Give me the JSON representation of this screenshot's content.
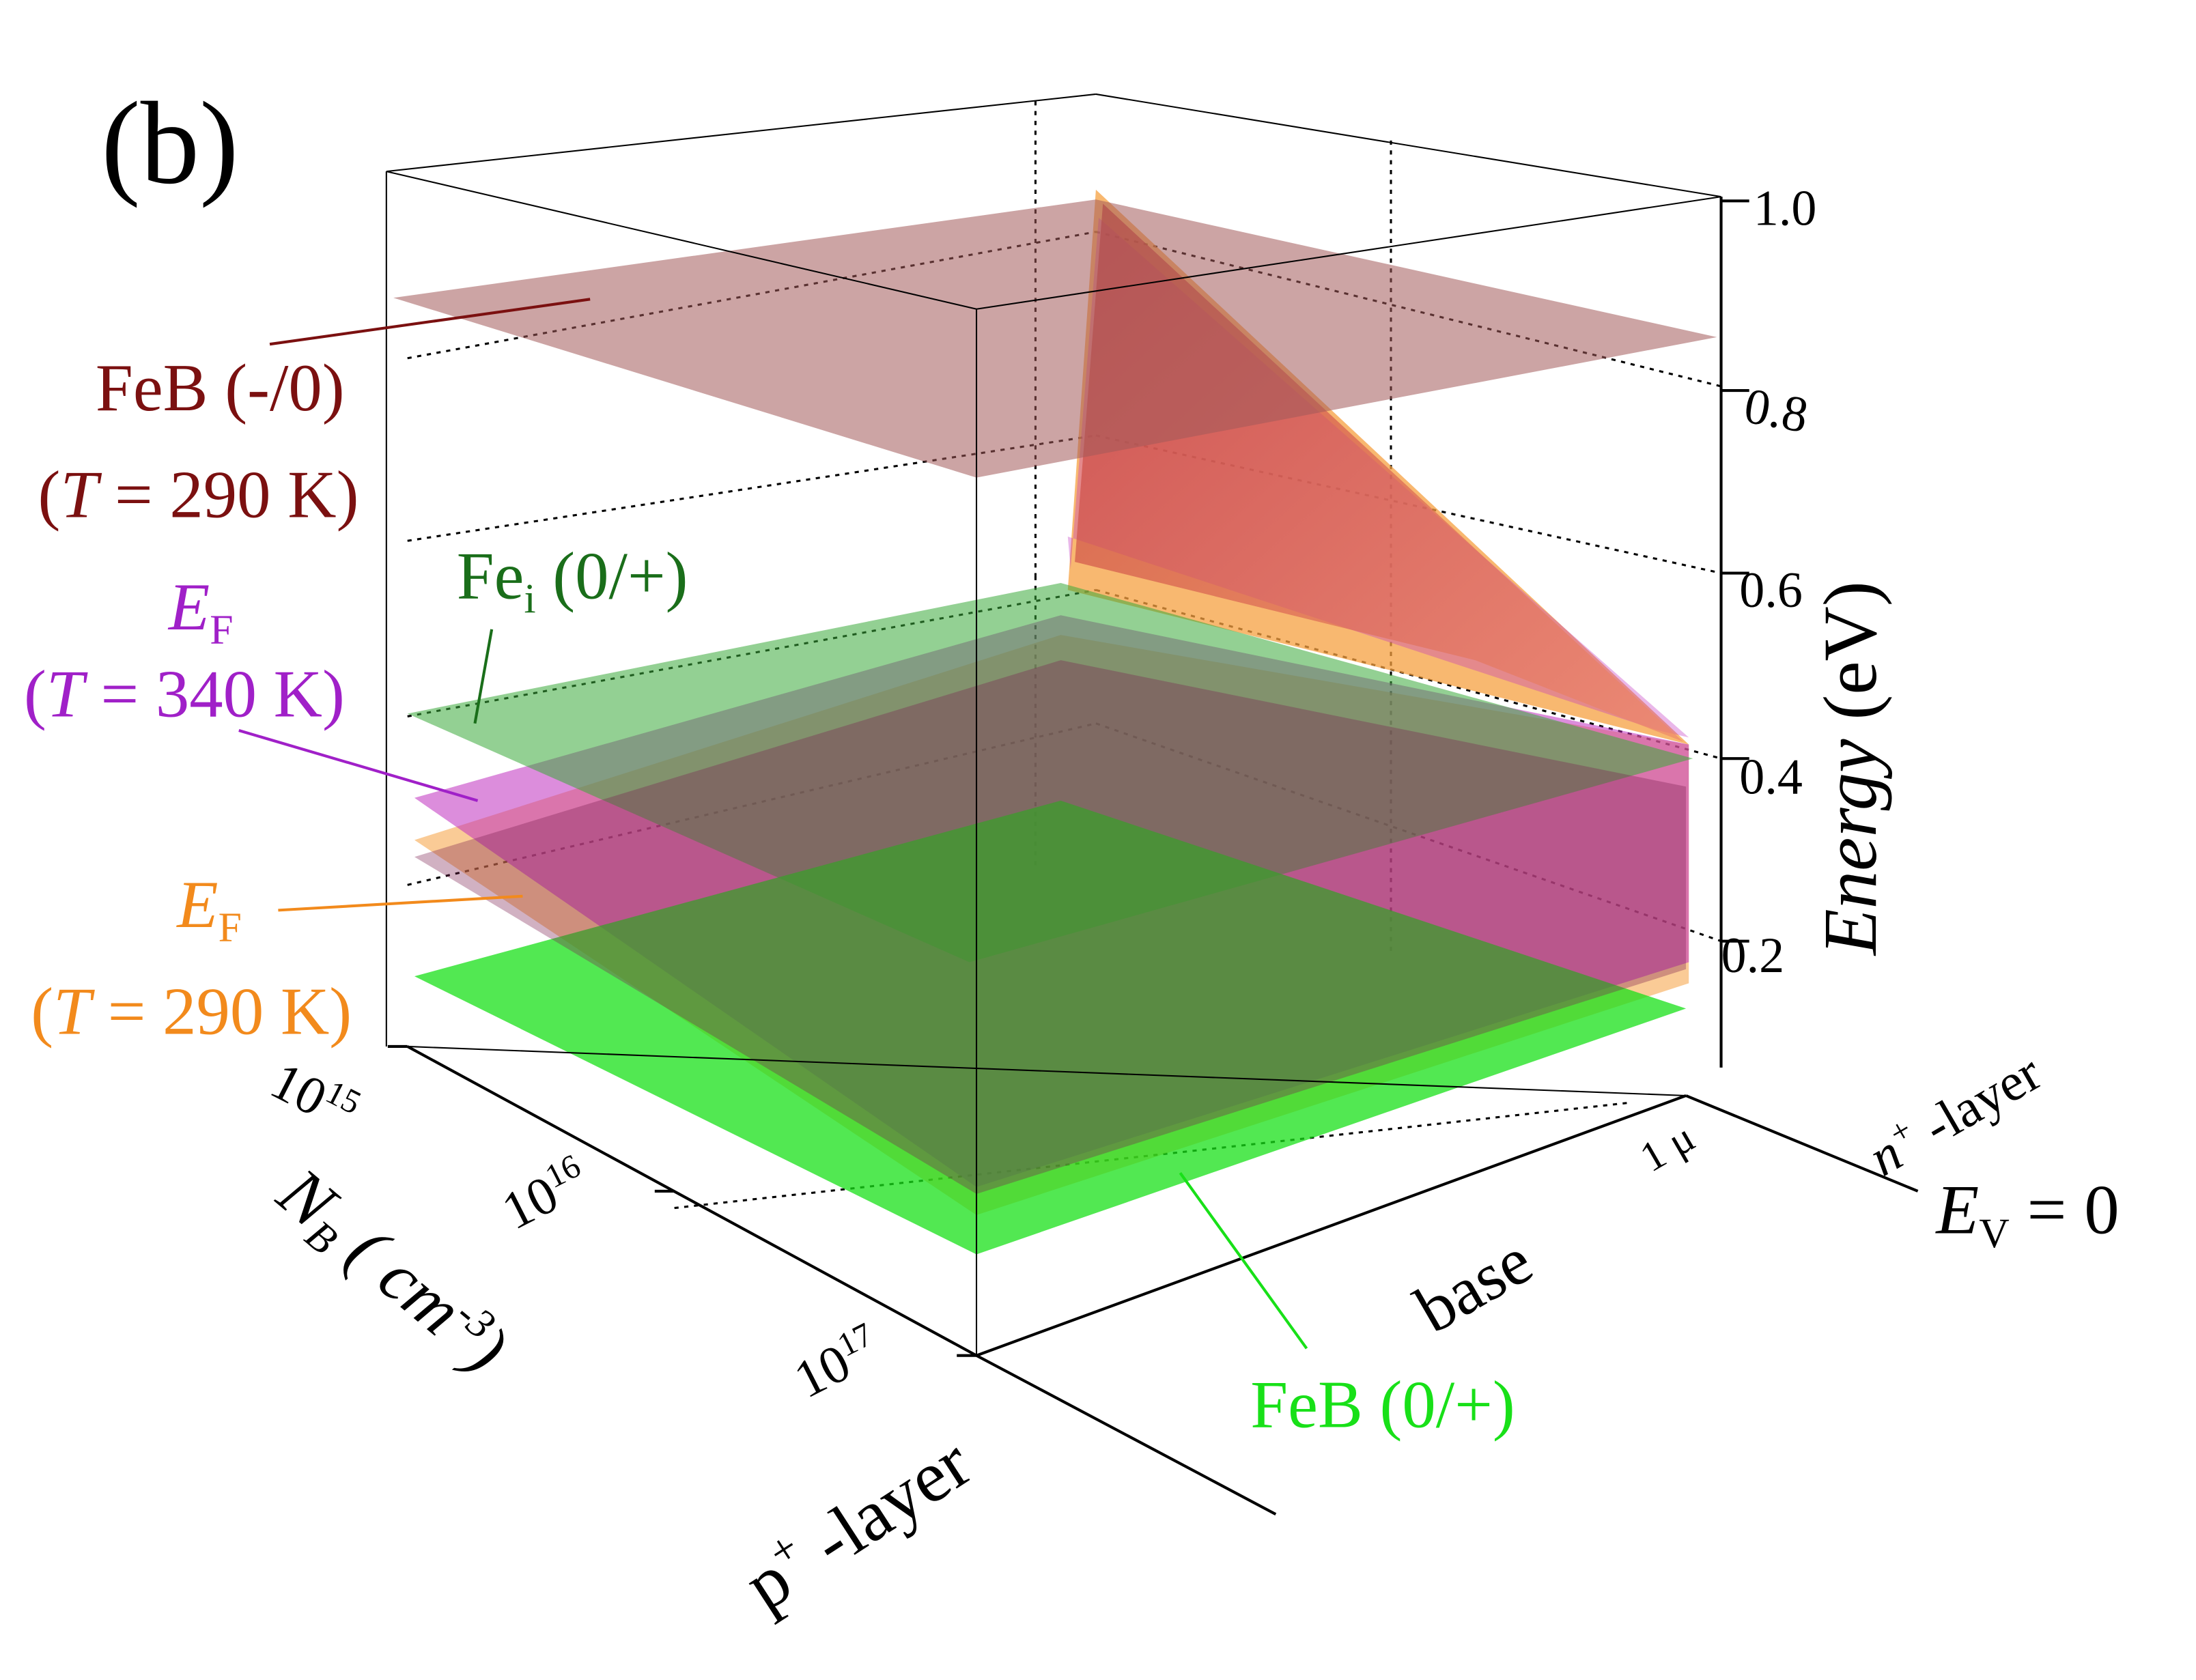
{
  "panel_label": "(b)",
  "chart_data": {
    "type": "surface3d",
    "z_axis": {
      "label": "Energy (eV)",
      "range": [
        0,
        1.0
      ],
      "ticks": [
        {
          "value": 0.2,
          "label": "0.2"
        },
        {
          "value": 0.4,
          "label": "0.4"
        },
        {
          "value": 0.6,
          "label": "0.6"
        },
        {
          "value": 0.8,
          "label": "0.8"
        },
        {
          "value": 1.0,
          "label": "1.0"
        }
      ],
      "reference_label": "E_V = 0"
    },
    "doping_axis": {
      "label": "N_B (cm^-3)",
      "ticks": [
        {
          "base": "10",
          "exp": "15"
        },
        {
          "base": "10",
          "exp": "16"
        },
        {
          "base": "10",
          "exp": "17"
        }
      ]
    },
    "depth_axis": {
      "regions": [
        "p+ -layer",
        "base",
        "n+ -layer"
      ],
      "tick_label": "1 μ"
    },
    "grid": "dashed",
    "surfaces": [
      {
        "name": "FeB (-/0)",
        "condition": "T = 290 K",
        "type": "plane",
        "energy_eV": 0.89,
        "color": "#a35a5a"
      },
      {
        "name": "Fe_i (0/+)",
        "type": "plane",
        "energy_eV": 0.4,
        "color": "#3aaa3a"
      },
      {
        "name": "E_F",
        "condition": "T = 340 K",
        "type": "surface",
        "energy_eV_base_low_doping": 0.37,
        "energy_eV_base_high_doping": 0.19,
        "energy_eV_n_side": 0.93,
        "color": "#c030c0"
      },
      {
        "name": "E_F",
        "condition": "T = 290 K",
        "type": "surface",
        "energy_eV_base_low_doping": 0.33,
        "energy_eV_base_high_doping": 0.15,
        "energy_eV_n_side": 0.98,
        "color": "#f5a040"
      },
      {
        "name": "FeB (0/+)",
        "type": "plane",
        "energy_eV": 0.1,
        "color": "#18e018"
      }
    ]
  },
  "labels": {
    "feb_minus": {
      "line1": "FeB (-/0)",
      "t_var": "T",
      "line2_rest": " = 290 K",
      "color": "#7b1010"
    },
    "fei": {
      "base": "Fe",
      "sub": "i",
      "rest": "  (0/+)",
      "color": "#1a6e1a"
    },
    "ef_340": {
      "base": "E",
      "sub": "F",
      "t_var": "T",
      "line2_rest": " = 340 K",
      "color": "#a020c8"
    },
    "ef_290": {
      "base": "E",
      "sub": "F",
      "t_var": "T",
      "line2_rest": " = 290 K",
      "color": "#f28a1c"
    },
    "feb_plus": {
      "text": "FeB (0/+)",
      "color": "#18e018"
    }
  },
  "energy_axis_title": {
    "italic": "Energy",
    "rest": " (eV)"
  },
  "ev_label": {
    "base": "E",
    "sub": "V",
    "rest": " = 0"
  },
  "nb_label": {
    "base": "N",
    "sub": "B",
    "rest": " ( cm",
    "sup": "-3",
    "close": ")"
  },
  "p_layer_label": {
    "base": "p",
    "sup": "+",
    "rest": " -layer"
  },
  "n_layer_label": {
    "base": "n",
    "sup": "+",
    "rest": " -layer"
  },
  "base_label": "base",
  "micron_label": "1 μ"
}
